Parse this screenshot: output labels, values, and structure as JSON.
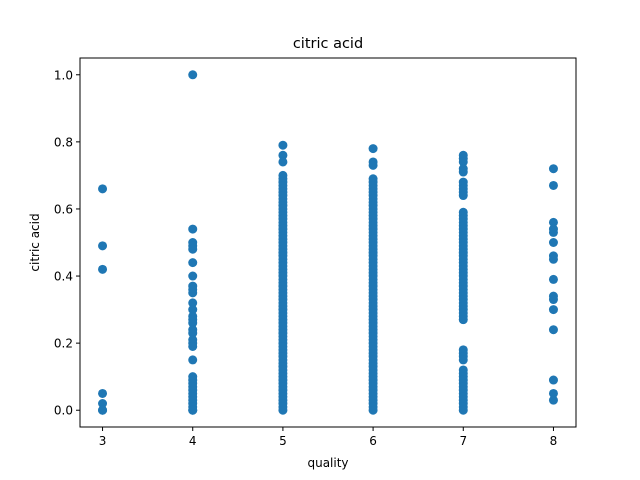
{
  "chart_data": {
    "type": "scatter",
    "title": "citric acid",
    "xlabel": "quality",
    "ylabel": "citric acid",
    "xlim": [
      2.75,
      8.25
    ],
    "ylim": [
      -0.05,
      1.05
    ],
    "xticks": [
      3,
      4,
      5,
      6,
      7,
      8
    ],
    "yticks": [
      0.0,
      0.2,
      0.4,
      0.6,
      0.8,
      1.0
    ],
    "xtick_labels": [
      "3",
      "4",
      "5",
      "6",
      "7",
      "8"
    ],
    "ytick_labels": [
      "0.0",
      "0.2",
      "0.4",
      "0.6",
      "0.8",
      "1.0"
    ],
    "grid": false,
    "marker_color": "#1f77b4",
    "points_by_x": [
      {
        "x": 3,
        "y": [
          0.66,
          0.49,
          0.42,
          0.05,
          0.02,
          0.0,
          0.0
        ]
      },
      {
        "x": 4,
        "y": [
          1.0,
          0.54,
          0.5,
          0.49,
          0.48,
          0.44,
          0.4,
          0.37,
          0.36,
          0.35,
          0.32,
          0.3,
          0.28,
          0.27,
          0.26,
          0.24,
          0.23,
          0.21,
          0.2,
          0.19,
          0.15,
          0.1,
          0.09,
          0.08,
          0.07,
          0.06,
          0.05,
          0.04,
          0.03,
          0.02,
          0.01,
          0.0,
          0.0
        ]
      },
      {
        "x": 5,
        "y": [
          0.79,
          0.76,
          0.74,
          0.7,
          0.69,
          0.68,
          0.67,
          0.66,
          0.65,
          0.64,
          0.63,
          0.62,
          0.61,
          0.6,
          0.59,
          0.58,
          0.57,
          0.56,
          0.55,
          0.54,
          0.53,
          0.52,
          0.51,
          0.5,
          0.49,
          0.48,
          0.47,
          0.46,
          0.45,
          0.44,
          0.43,
          0.42,
          0.41,
          0.4,
          0.39,
          0.38,
          0.37,
          0.36,
          0.35,
          0.34,
          0.33,
          0.32,
          0.31,
          0.3,
          0.29,
          0.28,
          0.27,
          0.26,
          0.25,
          0.24,
          0.23,
          0.22,
          0.21,
          0.2,
          0.19,
          0.18,
          0.17,
          0.16,
          0.15,
          0.14,
          0.13,
          0.12,
          0.11,
          0.1,
          0.09,
          0.08,
          0.07,
          0.06,
          0.05,
          0.04,
          0.03,
          0.02,
          0.01,
          0.0
        ]
      },
      {
        "x": 6,
        "y": [
          0.78,
          0.74,
          0.73,
          0.69,
          0.68,
          0.67,
          0.66,
          0.65,
          0.64,
          0.63,
          0.62,
          0.61,
          0.6,
          0.59,
          0.58,
          0.57,
          0.56,
          0.55,
          0.54,
          0.53,
          0.52,
          0.51,
          0.5,
          0.49,
          0.48,
          0.47,
          0.46,
          0.45,
          0.44,
          0.43,
          0.42,
          0.41,
          0.4,
          0.39,
          0.38,
          0.37,
          0.36,
          0.35,
          0.34,
          0.33,
          0.32,
          0.31,
          0.3,
          0.29,
          0.28,
          0.27,
          0.26,
          0.25,
          0.24,
          0.23,
          0.22,
          0.21,
          0.2,
          0.19,
          0.18,
          0.17,
          0.16,
          0.15,
          0.14,
          0.13,
          0.12,
          0.11,
          0.1,
          0.09,
          0.08,
          0.07,
          0.06,
          0.05,
          0.04,
          0.03,
          0.02,
          0.01,
          0.0
        ]
      },
      {
        "x": 7,
        "y": [
          0.76,
          0.75,
          0.74,
          0.72,
          0.71,
          0.68,
          0.67,
          0.66,
          0.65,
          0.64,
          0.59,
          0.58,
          0.57,
          0.56,
          0.55,
          0.54,
          0.53,
          0.52,
          0.51,
          0.5,
          0.49,
          0.48,
          0.47,
          0.46,
          0.45,
          0.44,
          0.43,
          0.42,
          0.41,
          0.4,
          0.39,
          0.38,
          0.37,
          0.36,
          0.35,
          0.34,
          0.33,
          0.32,
          0.31,
          0.3,
          0.29,
          0.28,
          0.27,
          0.18,
          0.17,
          0.16,
          0.15,
          0.12,
          0.11,
          0.1,
          0.09,
          0.08,
          0.07,
          0.06,
          0.05,
          0.04,
          0.03,
          0.02,
          0.01,
          0.0
        ]
      },
      {
        "x": 8,
        "y": [
          0.72,
          0.67,
          0.56,
          0.54,
          0.53,
          0.5,
          0.46,
          0.45,
          0.39,
          0.34,
          0.33,
          0.3,
          0.24,
          0.09,
          0.05,
          0.03
        ]
      }
    ]
  }
}
